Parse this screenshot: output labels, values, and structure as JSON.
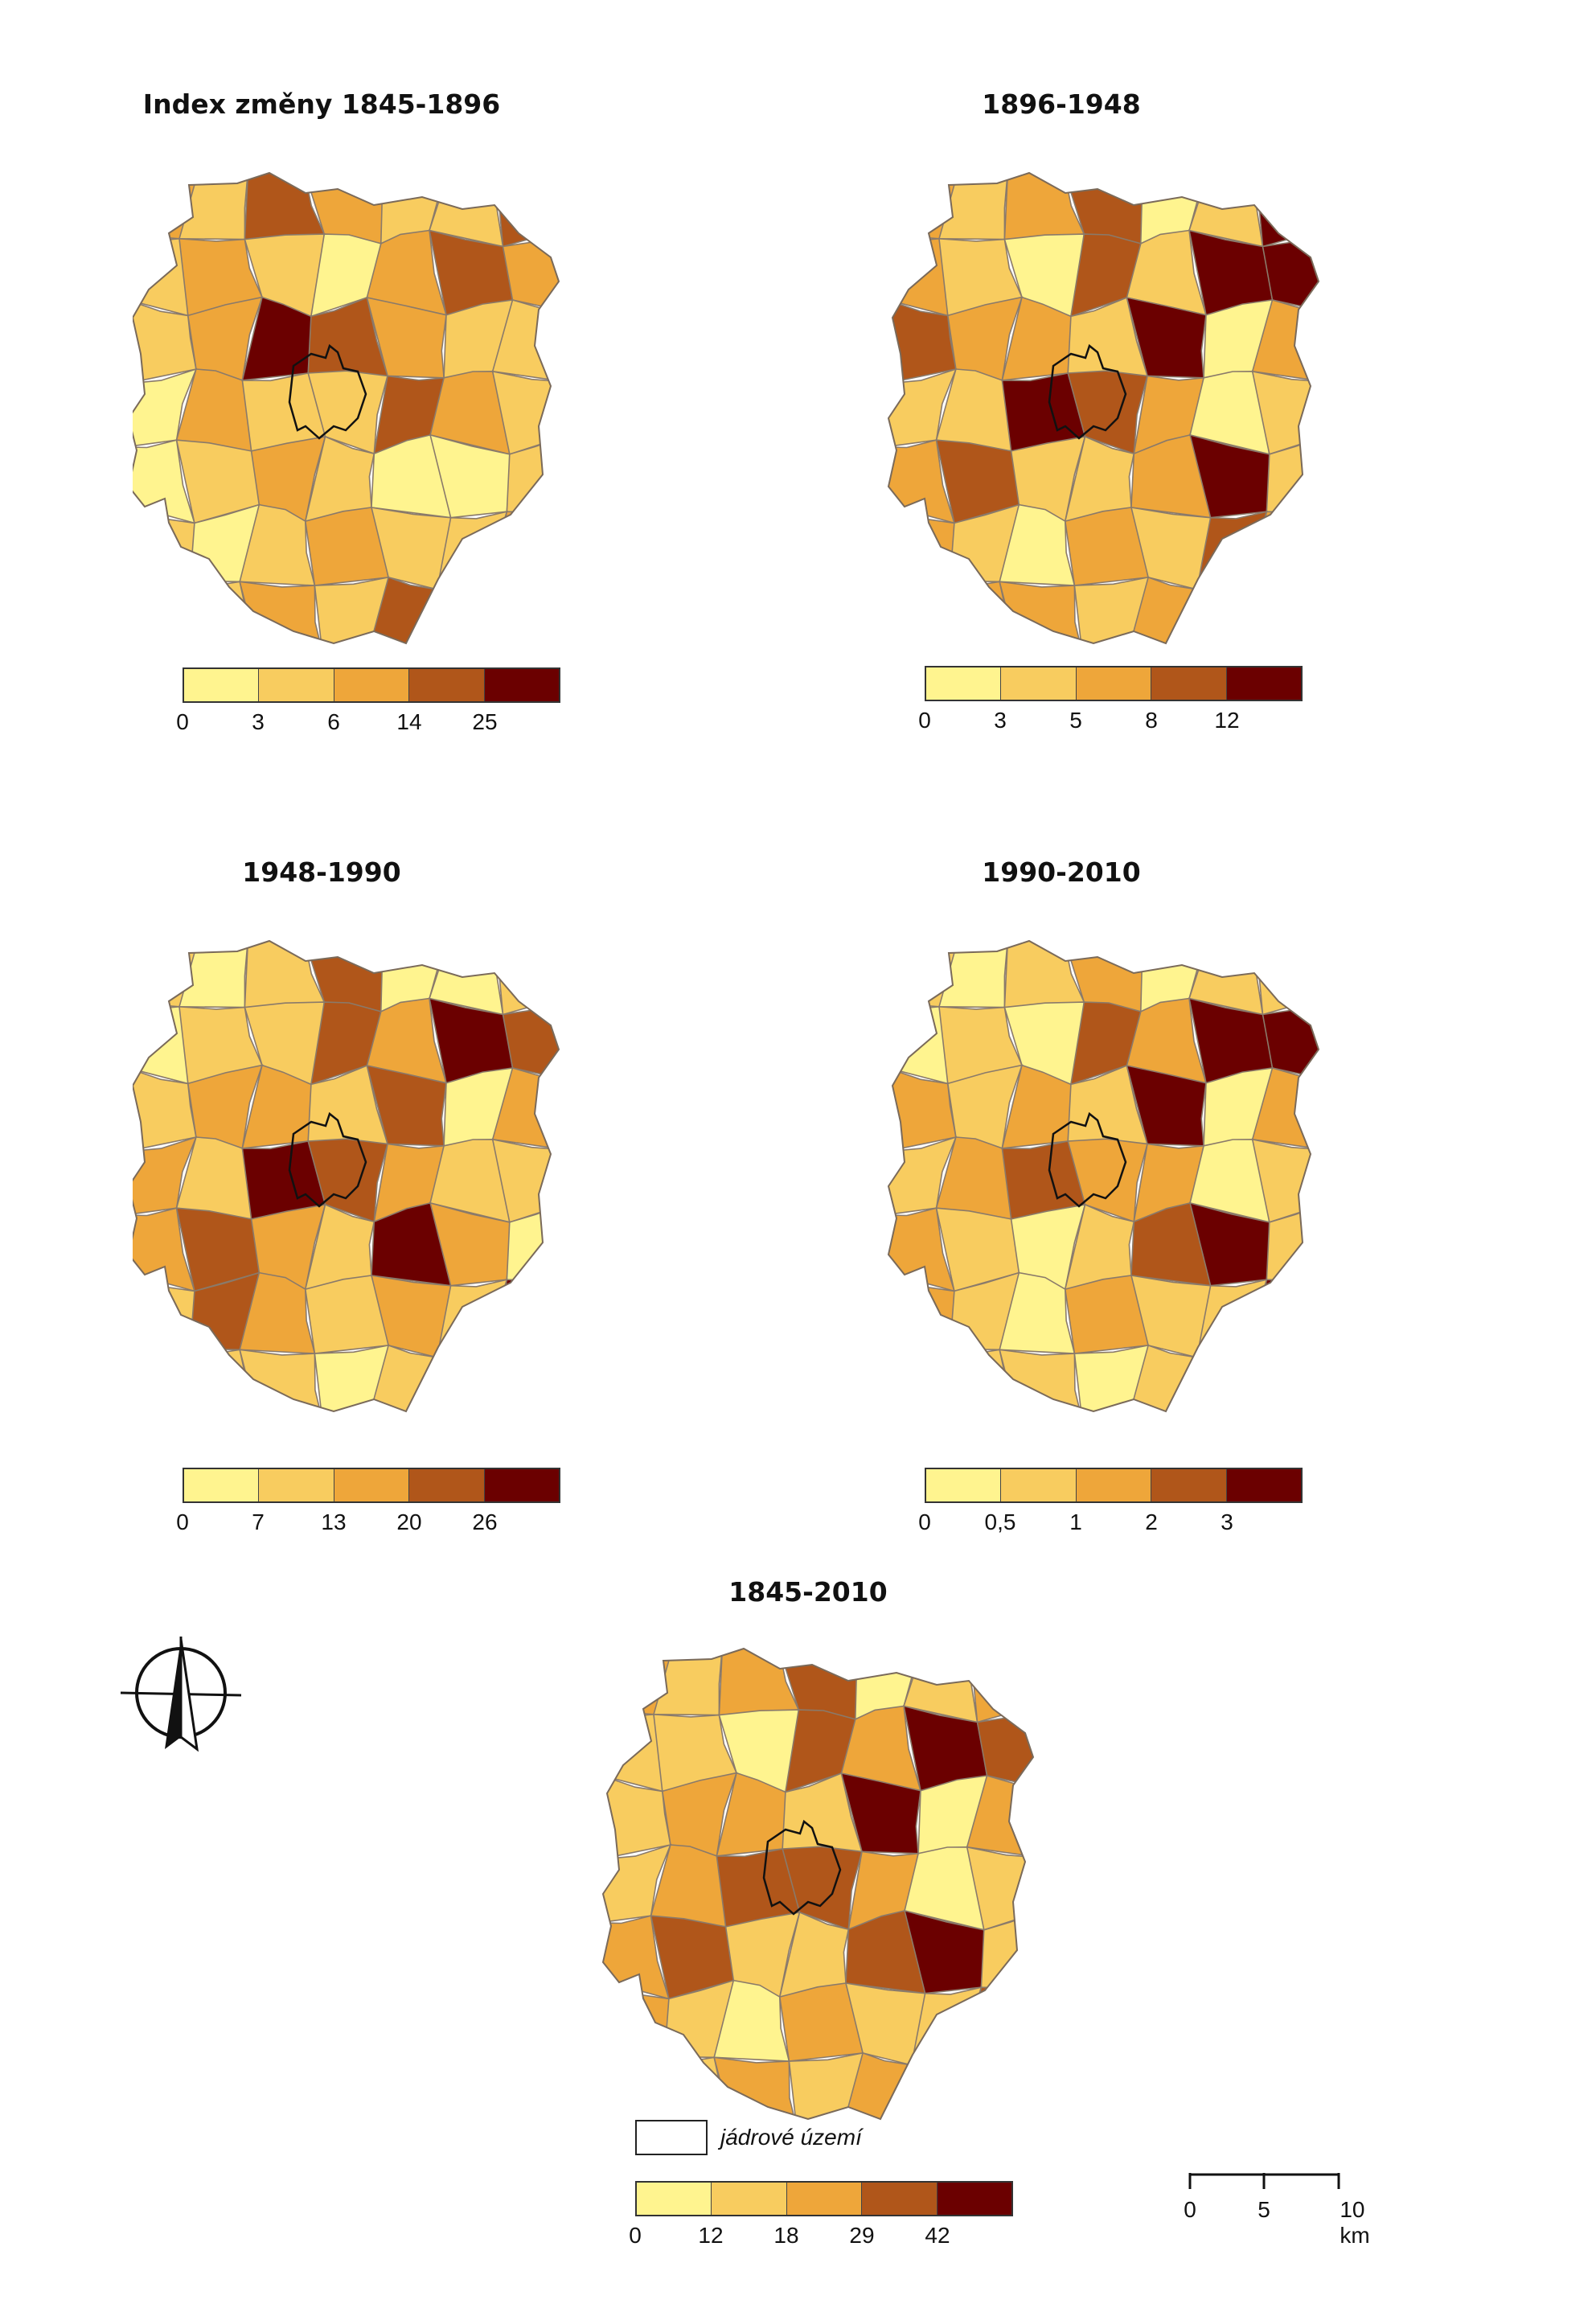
{
  "colors": [
    "#fff48f",
    "#f8cc5f",
    "#eea63a",
    "#b0561a",
    "#6b0000"
  ],
  "core_legend_label": "jádrové území",
  "scale": {
    "labels": [
      "0",
      "5",
      "10 km"
    ]
  },
  "panels": [
    {
      "id": "p1",
      "title": "Index změny 1845-1896",
      "breaks": [
        "0",
        "3",
        "6",
        "14",
        "25"
      ],
      "classes": [
        2,
        1,
        3,
        2,
        1,
        1,
        3,
        1,
        2,
        1,
        0,
        2,
        3,
        2,
        1,
        2,
        4,
        3,
        2,
        1,
        1,
        0,
        2,
        1,
        1,
        3,
        2,
        1,
        0,
        1,
        2,
        1,
        0,
        0,
        1,
        1,
        0,
        1,
        2,
        1,
        1,
        2,
        0,
        1
      ]
    },
    {
      "id": "p2",
      "title": "1896-1948",
      "breaks": [
        "0",
        "3",
        "5",
        "8",
        "12"
      ],
      "classes": [
        2,
        1,
        2,
        3,
        0,
        1,
        4,
        2,
        1,
        0,
        3,
        1,
        4,
        4,
        3,
        2,
        2,
        1,
        4,
        0,
        2,
        1,
        1,
        4,
        3,
        2,
        0,
        1,
        2,
        3,
        1,
        1,
        2,
        4,
        1,
        2,
        1,
        0,
        2,
        1,
        3,
        2,
        1,
        2
      ]
    },
    {
      "id": "p3",
      "title": "1948-1990",
      "breaks": [
        "0",
        "7",
        "13",
        "20",
        "26"
      ],
      "classes": [
        1,
        0,
        1,
        3,
        0,
        0,
        1,
        0,
        1,
        1,
        3,
        2,
        4,
        3,
        1,
        2,
        2,
        1,
        3,
        0,
        2,
        2,
        1,
        4,
        3,
        2,
        1,
        1,
        2,
        3,
        2,
        1,
        4,
        2,
        0,
        1,
        3,
        2,
        1,
        2,
        1,
        4,
        2,
        1
      ]
    },
    {
      "id": "p4",
      "title": "1990-2010",
      "breaks": [
        "0",
        "0,5",
        "1",
        "2",
        "3"
      ],
      "classes": [
        1,
        0,
        1,
        2,
        0,
        1,
        1,
        0,
        1,
        0,
        3,
        2,
        4,
        4,
        2,
        1,
        2,
        1,
        4,
        0,
        2,
        1,
        2,
        3,
        2,
        2,
        0,
        1,
        2,
        1,
        0,
        1,
        3,
        4,
        1,
        2,
        1,
        0,
        2,
        1,
        1,
        4,
        2,
        1
      ]
    },
    {
      "id": "p5",
      "title": "1845-2010",
      "breaks": [
        "0",
        "12",
        "18",
        "29",
        "42"
      ],
      "classes": [
        2,
        1,
        2,
        3,
        0,
        1,
        2,
        1,
        1,
        0,
        3,
        2,
        4,
        3,
        1,
        2,
        2,
        1,
        4,
        0,
        2,
        1,
        2,
        3,
        3,
        2,
        0,
        1,
        2,
        3,
        1,
        1,
        3,
        4,
        1,
        2,
        1,
        0,
        2,
        1,
        1,
        3,
        2,
        1
      ]
    }
  ]
}
